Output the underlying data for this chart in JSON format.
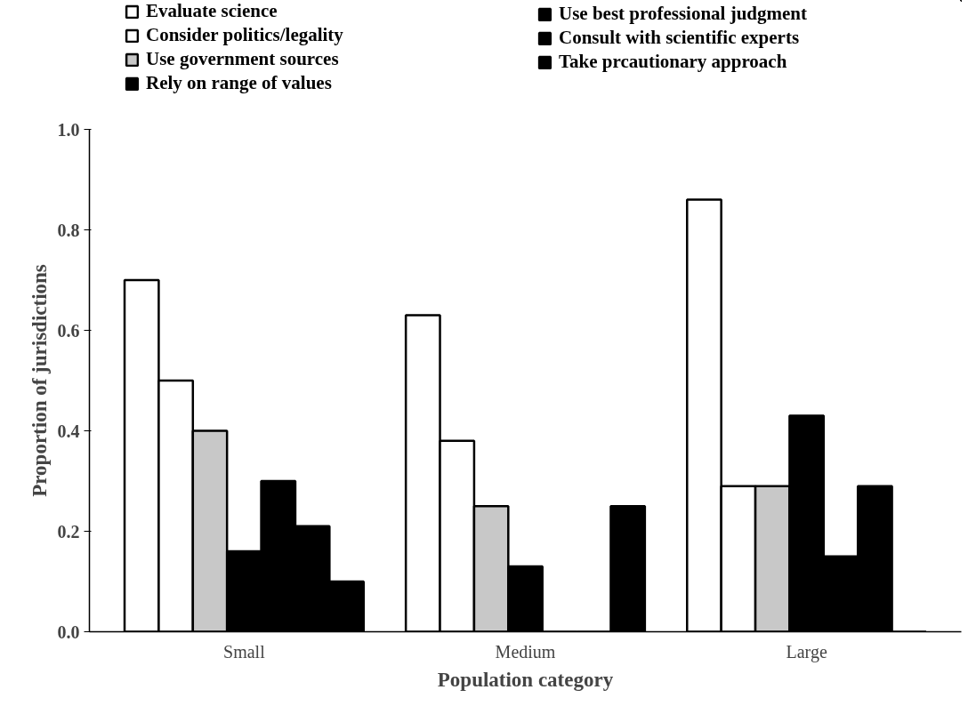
{
  "chart_data": {
    "type": "bar",
    "xlabel": "Population category",
    "ylabel": "Proportion of jurisdictions",
    "categories": [
      "Small",
      "Medium",
      "Large"
    ],
    "series": [
      {
        "name": "Evaluate science",
        "color": "#ffffff",
        "values": [
          0.7,
          0.63,
          0.86
        ]
      },
      {
        "name": "Consider politics/legality",
        "color": "#ffffff",
        "values": [
          0.5,
          0.38,
          0.29
        ]
      },
      {
        "name": "Use government sources",
        "color": "#c8c8c8",
        "values": [
          0.4,
          0.25,
          0.29
        ]
      },
      {
        "name": "Rely on range of values",
        "color": "#000000",
        "values": [
          0.16,
          0.13,
          0.43
        ]
      },
      {
        "name": "Use best professional judgment",
        "color": "#000000",
        "values": [
          0.3,
          0,
          0.15
        ]
      },
      {
        "name": "Consult with scientific experts",
        "color": "#000000",
        "values": [
          0.21,
          0,
          0.29
        ]
      },
      {
        "name": "Take prcautionary approach",
        "color": "#000000",
        "values": [
          0.1,
          0.25,
          0
        ]
      }
    ],
    "ylim": [
      0,
      1.0
    ],
    "yticks": [
      {
        "value": 0,
        "label": "0.0"
      },
      {
        "value": 0.2,
        "label": "0.2"
      },
      {
        "value": 0.4,
        "label": "0.4"
      },
      {
        "value": 0.6,
        "label": "0.6"
      },
      {
        "value": 0.8,
        "label": "0.8"
      },
      {
        "value": 1.0,
        "label": "1.0"
      }
    ],
    "grid": false,
    "legend": "top"
  }
}
